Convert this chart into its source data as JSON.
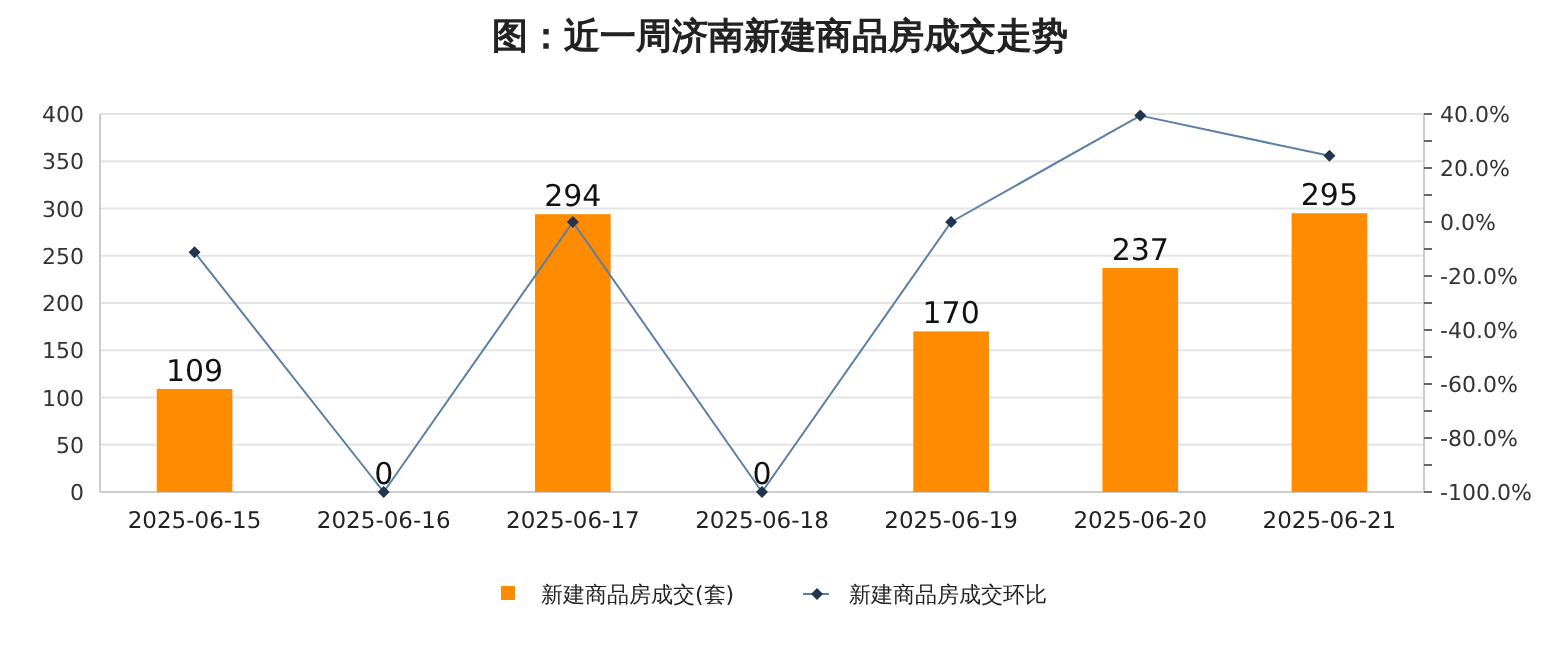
{
  "chart_data": {
    "type": "bar",
    "title": "图：近一周济南新建商品房成交走势",
    "categories": [
      "2025-06-15",
      "2025-06-16",
      "2025-06-17",
      "2025-06-18",
      "2025-06-19",
      "2025-06-20",
      "2025-06-21"
    ],
    "series": [
      {
        "name": "新建商品房成交(套)",
        "color": "#ff8c00",
        "values": [
          109,
          0,
          294,
          0,
          170,
          237,
          295
        ],
        "value_labels": [
          "109",
          "0",
          "294",
          "0",
          "170",
          "237",
          "295"
        ]
      },
      {
        "name": "新建商品房成交环比",
        "type": "line",
        "axis": "y2",
        "color": "#5b7fa6",
        "marker": "diamond",
        "values": [
          -11.2,
          -100,
          0,
          -100,
          0,
          39.4,
          24.5
        ]
      }
    ],
    "ylim": [
      0,
      400
    ],
    "yticks": [
      0,
      50,
      100,
      150,
      200,
      250,
      300,
      350,
      400
    ],
    "y2lim": [
      -100,
      40
    ],
    "y2ticks": [
      {
        "value": -100,
        "label": "-100.0%"
      },
      {
        "value": -90,
        "label": null
      },
      {
        "value": -80,
        "label": "-80.0%"
      },
      {
        "value": -70,
        "label": null
      },
      {
        "value": -60,
        "label": "-60.0%"
      },
      {
        "value": -50,
        "label": null
      },
      {
        "value": -40,
        "label": "-40.0%"
      },
      {
        "value": -30,
        "label": null
      },
      {
        "value": -20,
        "label": "-20.0%"
      },
      {
        "value": -10,
        "label": null
      },
      {
        "value": 0,
        "label": "0.0%"
      },
      {
        "value": 10,
        "label": null
      },
      {
        "value": 20,
        "label": "20.0%"
      },
      {
        "value": 30,
        "label": null
      },
      {
        "value": 40,
        "label": "40.0%"
      }
    ],
    "grid": "y",
    "legend": "bottom"
  }
}
